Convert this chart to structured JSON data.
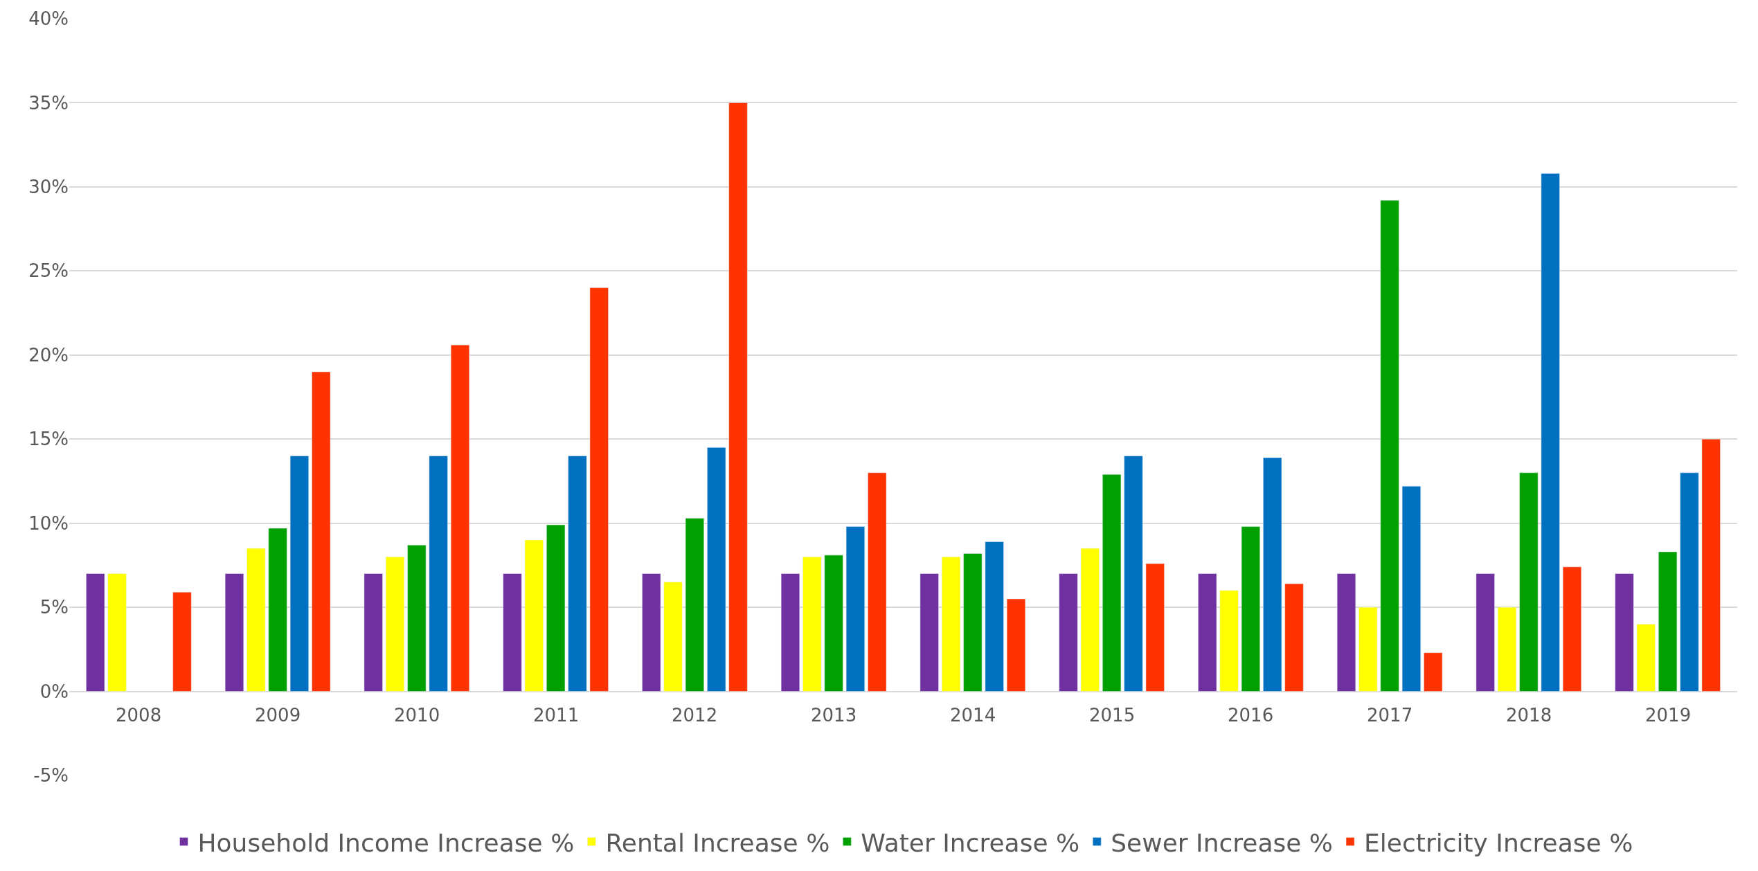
{
  "chart_data": {
    "type": "bar",
    "categories": [
      "2008",
      "2009",
      "2010",
      "2011",
      "2012",
      "2013",
      "2014",
      "2015",
      "2016",
      "2017",
      "2018",
      "2019"
    ],
    "series": [
      {
        "name": "Household Income Increase %",
        "color": "#7030a0",
        "values": [
          7,
          7,
          7,
          7,
          7,
          7,
          7,
          7,
          7,
          7,
          7,
          7
        ]
      },
      {
        "name": "Rental Increase %",
        "color": "#ffff00",
        "values": [
          7,
          8.5,
          8,
          9,
          6.5,
          8,
          8,
          8.5,
          6,
          5,
          5,
          4
        ]
      },
      {
        "name": "Water Increase %",
        "color": "#00a000",
        "values": [
          null,
          9.7,
          8.7,
          9.9,
          10.3,
          8.1,
          8.2,
          12.9,
          9.8,
          29.2,
          13,
          8.3
        ]
      },
      {
        "name": "Sewer Increase %",
        "color": "#0070c0",
        "values": [
          null,
          14,
          14,
          14,
          14.5,
          9.8,
          8.9,
          14,
          13.9,
          12.2,
          30.8,
          13
        ]
      },
      {
        "name": "Electricity Increase %",
        "color": "#ff3300",
        "values": [
          5.9,
          19,
          20.6,
          24,
          35,
          13,
          5.5,
          7.6,
          6.4,
          2.3,
          7.4,
          15
        ]
      }
    ],
    "ylim": [
      -5,
      40
    ],
    "yticks": [
      {
        "value": -5,
        "label": "-5%"
      },
      {
        "value": 0,
        "label": "0%"
      },
      {
        "value": 5,
        "label": "5%"
      },
      {
        "value": 10,
        "label": "10%"
      },
      {
        "value": 15,
        "label": "15%"
      },
      {
        "value": 20,
        "label": "20%"
      },
      {
        "value": 25,
        "label": "25%"
      },
      {
        "value": 30,
        "label": "30%"
      },
      {
        "value": 35,
        "label": "35%"
      },
      {
        "value": 40,
        "label": "40%"
      }
    ],
    "grid": "y",
    "legend": "bottom"
  }
}
